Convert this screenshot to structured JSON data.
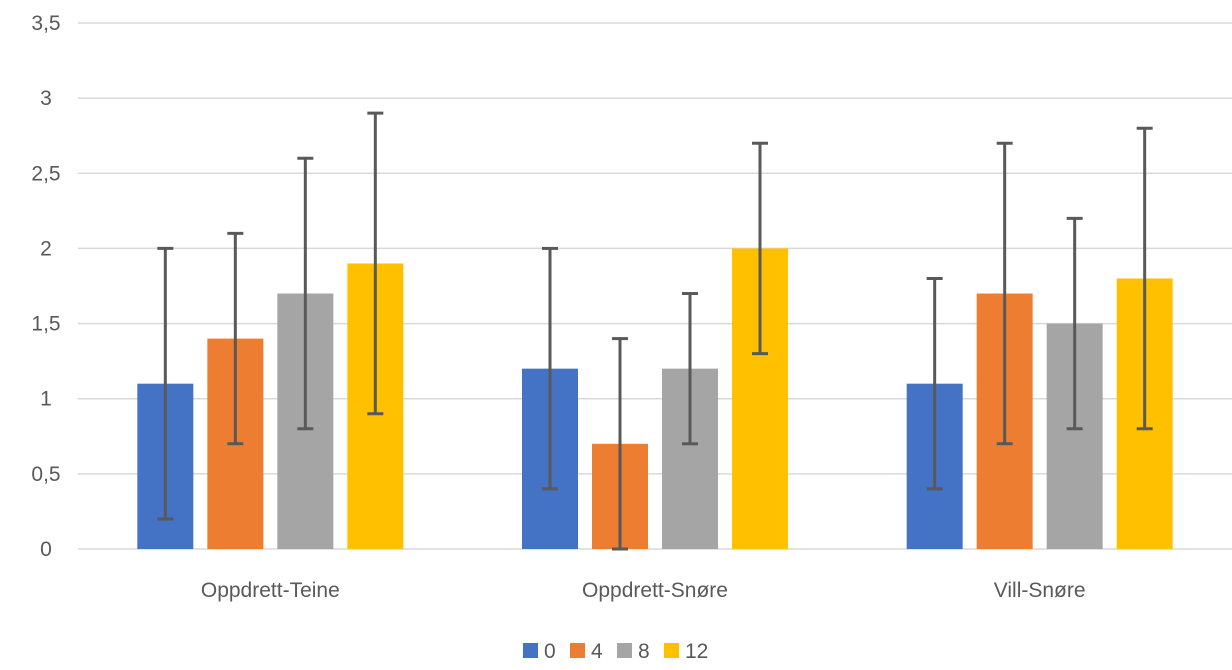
{
  "chart_data": {
    "type": "bar",
    "categories": [
      "Oppdrett-Teine",
      "Oppdrett-Snøre",
      "Vill-Snøre"
    ],
    "series": [
      {
        "name": "0",
        "color": "#4472C4",
        "values": [
          1.1,
          1.2,
          1.1
        ],
        "error_low": [
          0.2,
          0.4,
          0.4
        ],
        "error_high": [
          2.0,
          2.0,
          1.8
        ]
      },
      {
        "name": "4",
        "color": "#ED7D31",
        "values": [
          1.4,
          0.7,
          1.7
        ],
        "error_low": [
          0.7,
          0.0,
          0.7
        ],
        "error_high": [
          2.1,
          1.4,
          2.7
        ]
      },
      {
        "name": "8",
        "color": "#A5A5A5",
        "values": [
          1.7,
          1.2,
          1.5
        ],
        "error_low": [
          0.8,
          0.7,
          0.8
        ],
        "error_high": [
          2.6,
          1.7,
          2.2
        ]
      },
      {
        "name": "12",
        "color": "#FFC000",
        "values": [
          1.9,
          2.0,
          1.8
        ],
        "error_low": [
          0.9,
          1.3,
          0.8
        ],
        "error_high": [
          2.9,
          2.7,
          2.8
        ]
      }
    ],
    "yticks": [
      "0",
      "0,5",
      "1",
      "1,5",
      "2",
      "2,5",
      "3",
      "3,5"
    ],
    "ylim": [
      0,
      3.5
    ],
    "title": "",
    "xlabel": "",
    "ylabel": "",
    "grid": true,
    "legend": "bottom-center",
    "error_bar_color": "#595959",
    "grid_color": "#D9D9D9",
    "axis_color": "#D9D9D9"
  }
}
